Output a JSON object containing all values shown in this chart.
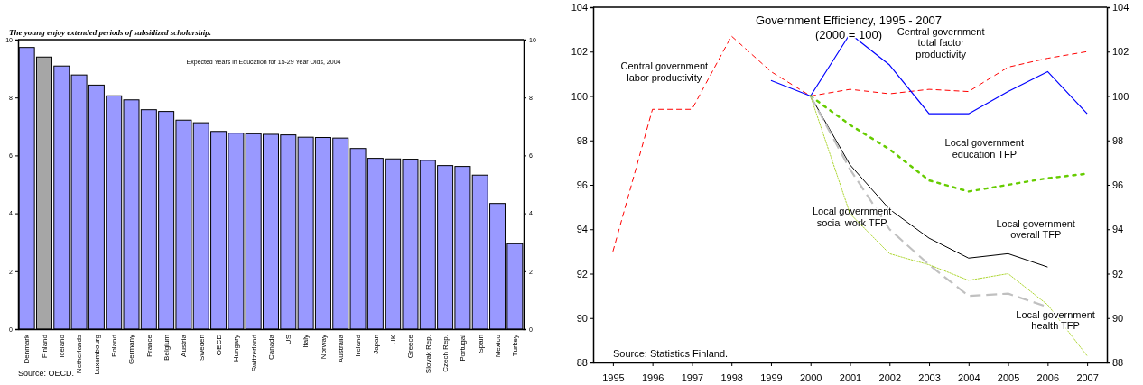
{
  "chart_data": [
    {
      "type": "bar",
      "title": "The young enjoy extended periods of subsidized scholarship.",
      "subtitle": "Expected Years in Education for 15-29 Year Olds, 2004",
      "categories": [
        "Denmark",
        "Finland",
        "Iceland",
        "Netherlands",
        "Luxembourg",
        "Poland",
        "Germany",
        "France",
        "Belgium",
        "Austria",
        "Sweden",
        "OECD",
        "Hungary",
        "Switzerland",
        "Canada",
        "US",
        "Italy",
        "Norway",
        "Australia",
        "Ireland",
        "Japan",
        "UK",
        "Greece",
        "Slovak Rep.",
        "Czech Rep.",
        "Portugal",
        "Spain",
        "Mexico",
        "Turkey"
      ],
      "values": [
        9.73,
        9.4,
        9.09,
        8.78,
        8.43,
        8.06,
        7.92,
        7.58,
        7.52,
        7.22,
        7.13,
        6.83,
        6.77,
        6.75,
        6.73,
        6.71,
        6.63,
        6.62,
        6.6,
        6.24,
        5.9,
        5.88,
        5.87,
        5.83,
        5.65,
        5.62,
        5.32,
        4.34,
        2.95
      ],
      "colors": [
        "#9999ff",
        "#a6a6a6",
        "#9999ff",
        "#9999ff",
        "#9999ff",
        "#9999ff",
        "#9999ff",
        "#9999ff",
        "#9999ff",
        "#9999ff",
        "#9999ff",
        "#9999ff",
        "#9999ff",
        "#9999ff",
        "#9999ff",
        "#9999ff",
        "#9999ff",
        "#9999ff",
        "#9999ff",
        "#9999ff",
        "#9999ff",
        "#9999ff",
        "#9999ff",
        "#9999ff",
        "#9999ff",
        "#9999ff",
        "#9999ff",
        "#9999ff",
        "#9999ff"
      ],
      "ylim": [
        0,
        10
      ],
      "yticks": [
        0,
        2,
        4,
        6,
        8,
        10
      ],
      "y2lim": [
        0,
        10
      ],
      "y2ticks": [
        0,
        2,
        4,
        6,
        8,
        10
      ],
      "grid": false,
      "legend": false,
      "annotations": [
        "Source: OECD."
      ]
    },
    {
      "type": "line",
      "title": "Government Efficiency, 1995 - 2007",
      "subtitle": "(2000 = 100)",
      "x": [
        1995,
        1996,
        1997,
        1998,
        1999,
        2000,
        2001,
        2002,
        2003,
        2004,
        2005,
        2006,
        2007
      ],
      "series": [
        {
          "name": "Central government labor productivity",
          "color": "#ff0000",
          "line_style": "dashed",
          "values": [
            93.0,
            99.4,
            99.4,
            102.7,
            101.1,
            100,
            100.3,
            100.1,
            100.3,
            100.2,
            101.3,
            101.7,
            102.0
          ]
        },
        {
          "name": "Central government total factor productivity",
          "color": "#0000ff",
          "line_style": "solid",
          "values": [
            null,
            null,
            null,
            null,
            100.7,
            100,
            102.8,
            101.4,
            99.2,
            99.2,
            100.2,
            101.1,
            99.2
          ]
        },
        {
          "name": "Local government education TFP",
          "color": "#66cc00",
          "line_style": "dotted",
          "values": [
            null,
            null,
            null,
            null,
            null,
            100,
            98.7,
            97.6,
            96.2,
            95.7,
            96.0,
            96.3,
            96.5
          ]
        },
        {
          "name": "Local government overall TFP",
          "color": "#000000",
          "line_style": "solid",
          "values": [
            null,
            null,
            null,
            null,
            null,
            100,
            96.9,
            94.9,
            93.6,
            92.7,
            92.9,
            92.3,
            null
          ]
        },
        {
          "name": "Local government social work TFP",
          "color": "#c0c0c0",
          "line_style": "dashed",
          "values": [
            null,
            null,
            null,
            null,
            null,
            100,
            96.7,
            94.0,
            92.4,
            91.0,
            91.1,
            90.5,
            null
          ]
        },
        {
          "name": "Local government health TFP",
          "color": "#99cc00",
          "line_style": "dotted",
          "values": [
            null,
            null,
            null,
            null,
            null,
            100,
            94.7,
            92.9,
            92.4,
            91.7,
            92.0,
            90.6,
            88.3
          ]
        }
      ],
      "xlim": [
        1994.5,
        2007.5
      ],
      "xticks": [
        1995,
        1996,
        1997,
        1998,
        1999,
        2000,
        2001,
        2002,
        2003,
        2004,
        2005,
        2006,
        2007
      ],
      "ylim": [
        88,
        104
      ],
      "yticks": [
        88,
        90,
        92,
        94,
        96,
        98,
        100,
        102,
        104
      ],
      "y2lim": [
        88,
        104
      ],
      "y2ticks": [
        88,
        90,
        92,
        94,
        96,
        98,
        100,
        102,
        104
      ],
      "grid": false,
      "legend": false,
      "marker": "none",
      "annotations": [
        "Source: Statistics Finland."
      ]
    }
  ]
}
